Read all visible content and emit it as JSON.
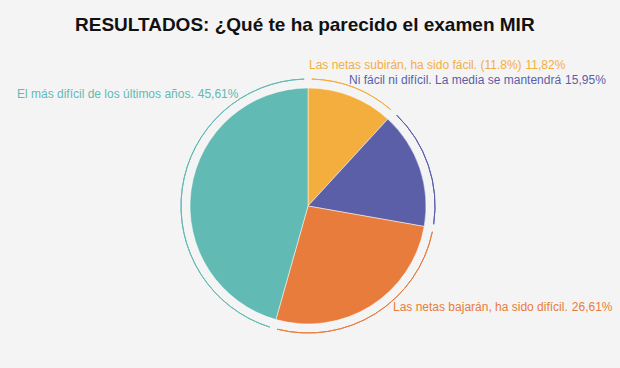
{
  "chart_data": {
    "type": "pie",
    "title": "RESULTADOS: ¿Qué te ha parecido el examen MIR",
    "categories": [
      "Las netas subirán, ha sido fácil. (11.8%)",
      "Ni fácil ni difícil. La media se mantendrá",
      "Las netas bajarán, ha sido difícil.",
      "El más difícil de los últimos años."
    ],
    "values": [
      11.82,
      15.95,
      26.61,
      45.61
    ],
    "value_labels": [
      "11,82%",
      "15,95%",
      "26,61%",
      "45,61%"
    ],
    "colors": [
      "#f3ae3e",
      "#5a5fa8",
      "#e87c3c",
      "#62bab4"
    ],
    "data_labels": true
  }
}
